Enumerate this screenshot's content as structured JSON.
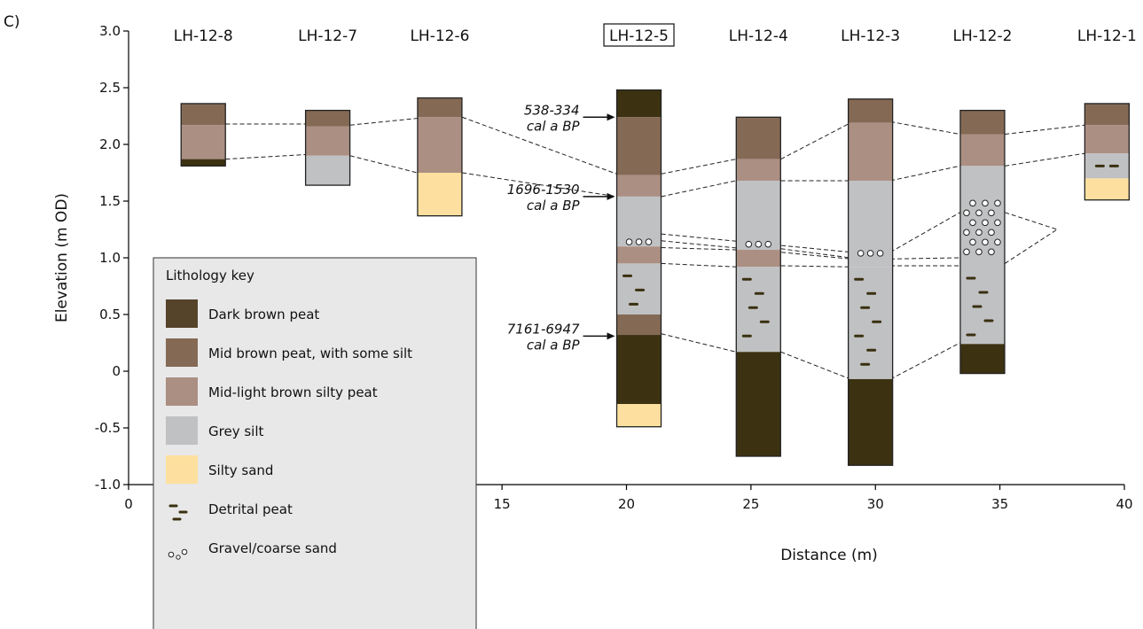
{
  "panel_label": "C)",
  "chart_data": {
    "type": "diagram",
    "xlabel": "Distance (m)",
    "ylabel": "Elevation (m OD)",
    "xlim": [
      0,
      40
    ],
    "ylim": [
      -1.0,
      3.0
    ],
    "x_ticks": [
      0,
      5,
      10,
      15,
      20,
      25,
      30,
      35,
      40
    ],
    "y_ticks": [
      -1.0,
      -0.5,
      0,
      0.5,
      1.0,
      1.5,
      2.0,
      2.5,
      3.0
    ],
    "y_tick_labels": [
      "-1.0",
      "-0.5",
      "0",
      "0.5",
      "1.0",
      "1.5",
      "2.0",
      "2.5",
      "3.0"
    ],
    "cores": [
      {
        "name": "LH-12-8",
        "x": 3,
        "highlight": false,
        "layers": [
          {
            "type": "mid",
            "top": 2.36,
            "bottom": 2.17
          },
          {
            "type": "light",
            "top": 2.17,
            "bottom": 1.87
          },
          {
            "type": "dark",
            "top": 1.87,
            "bottom": 1.81
          }
        ]
      },
      {
        "name": "LH-12-7",
        "x": 8,
        "highlight": false,
        "layers": [
          {
            "type": "mid",
            "top": 2.3,
            "bottom": 2.16
          },
          {
            "type": "light",
            "top": 2.16,
            "bottom": 1.9
          },
          {
            "type": "grey",
            "top": 1.9,
            "bottom": 1.64
          }
        ]
      },
      {
        "name": "LH-12-6",
        "x": 12.5,
        "highlight": false,
        "layers": [
          {
            "type": "mid",
            "top": 2.41,
            "bottom": 2.24
          },
          {
            "type": "light",
            "top": 2.24,
            "bottom": 1.75
          },
          {
            "type": "sand",
            "top": 1.75,
            "bottom": 1.37
          }
        ]
      },
      {
        "name": "LH-12-5",
        "x": 20.5,
        "highlight": true,
        "layers": [
          {
            "type": "dark",
            "top": 2.48,
            "bottom": 2.24
          },
          {
            "type": "mid",
            "top": 2.24,
            "bottom": 1.73
          },
          {
            "type": "light",
            "top": 1.73,
            "bottom": 1.54
          },
          {
            "type": "grey",
            "top": 1.54,
            "bottom": 1.1
          },
          {
            "type": "light",
            "top": 1.1,
            "bottom": 0.95
          },
          {
            "type": "grey",
            "top": 0.95,
            "bottom": 0.5,
            "symbol": "detrital"
          },
          {
            "type": "mid",
            "top": 0.5,
            "bottom": 0.32
          },
          {
            "type": "dark",
            "top": 0.32,
            "bottom": -0.29
          },
          {
            "type": "sand",
            "top": -0.29,
            "bottom": -0.49
          }
        ],
        "gravel": [
          1.14
        ]
      },
      {
        "name": "LH-12-4",
        "x": 25.3,
        "highlight": false,
        "layers": [
          {
            "type": "mid",
            "top": 2.24,
            "bottom": 1.87
          },
          {
            "type": "light",
            "top": 1.87,
            "bottom": 1.68
          },
          {
            "type": "grey",
            "top": 1.68,
            "bottom": 1.07
          },
          {
            "type": "light",
            "top": 1.07,
            "bottom": 0.92
          },
          {
            "type": "grey",
            "top": 0.92,
            "bottom": 0.17,
            "symbol": "detrital"
          },
          {
            "type": "dark",
            "top": 0.17,
            "bottom": -0.75
          }
        ],
        "gravel": [
          1.12
        ]
      },
      {
        "name": "LH-12-3",
        "x": 29.8,
        "highlight": false,
        "layers": [
          {
            "type": "mid",
            "top": 2.4,
            "bottom": 2.19
          },
          {
            "type": "light",
            "top": 2.19,
            "bottom": 1.68
          },
          {
            "type": "grey",
            "top": 1.68,
            "bottom": 0.92
          },
          {
            "type": "grey",
            "top": 0.92,
            "bottom": -0.07,
            "symbol": "detrital"
          },
          {
            "type": "dark",
            "top": -0.07,
            "bottom": -0.83
          }
        ],
        "gravel": [
          1.04
        ]
      },
      {
        "name": "LH-12-2",
        "x": 34.3,
        "highlight": false,
        "layers": [
          {
            "type": "mid",
            "top": 2.3,
            "bottom": 2.09
          },
          {
            "type": "light",
            "top": 2.09,
            "bottom": 1.81
          },
          {
            "type": "grey",
            "top": 1.81,
            "bottom": 0.93,
            "symbol": "gravel"
          },
          {
            "type": "grey",
            "top": 0.93,
            "bottom": 0.24,
            "symbol": "detrital"
          },
          {
            "type": "dark",
            "top": 0.24,
            "bottom": -0.02
          }
        ]
      },
      {
        "name": "LH-12-1",
        "x": 39.3,
        "highlight": false,
        "layers": [
          {
            "type": "mid",
            "top": 2.36,
            "bottom": 2.17
          },
          {
            "type": "light",
            "top": 2.17,
            "bottom": 1.92
          },
          {
            "type": "grey",
            "top": 1.92,
            "bottom": 1.7,
            "symbol": "detrital"
          },
          {
            "type": "sand",
            "top": 1.7,
            "bottom": 1.51
          }
        ]
      }
    ],
    "correlation_lines": [
      [
        [
          3.9,
          2.18
        ],
        [
          7.1,
          2.18
        ]
      ],
      [
        [
          3.9,
          1.87
        ],
        [
          7.1,
          1.91
        ]
      ],
      [
        [
          8.9,
          2.17
        ],
        [
          11.6,
          2.23
        ]
      ],
      [
        [
          8.9,
          1.9
        ],
        [
          11.6,
          1.75
        ]
      ],
      [
        [
          13.4,
          2.24
        ],
        [
          19.6,
          1.74
        ]
      ],
      [
        [
          13.4,
          1.75
        ],
        [
          19.6,
          1.54
        ]
      ],
      [
        [
          21.4,
          1.74
        ],
        [
          24.4,
          1.87
        ]
      ],
      [
        [
          21.4,
          1.54
        ],
        [
          24.4,
          1.68
        ]
      ],
      [
        [
          21.4,
          1.21
        ],
        [
          29.0,
          1.05
        ]
      ],
      [
        [
          21.4,
          1.15
        ],
        [
          29.0,
          0.99
        ]
      ],
      [
        [
          21.4,
          1.09
        ],
        [
          24.4,
          1.07
        ]
      ],
      [
        [
          21.4,
          0.95
        ],
        [
          24.4,
          0.92
        ]
      ],
      [
        [
          21.4,
          0.33
        ],
        [
          24.4,
          0.17
        ]
      ],
      [
        [
          26.2,
          1.87
        ],
        [
          29.0,
          2.19
        ]
      ],
      [
        [
          26.2,
          1.68
        ],
        [
          29.0,
          1.68
        ]
      ],
      [
        [
          26.2,
          1.08
        ],
        [
          29.0,
          1.0
        ]
      ],
      [
        [
          26.2,
          0.93
        ],
        [
          29.0,
          0.92
        ]
      ],
      [
        [
          26.2,
          0.17
        ],
        [
          29.0,
          -0.07
        ]
      ],
      [
        [
          30.6,
          2.2
        ],
        [
          33.4,
          2.09
        ]
      ],
      [
        [
          30.6,
          1.68
        ],
        [
          33.4,
          1.81
        ]
      ],
      [
        [
          30.6,
          1.05
        ],
        [
          33.4,
          1.4
        ]
      ],
      [
        [
          30.6,
          0.99
        ],
        [
          33.4,
          1.0
        ]
      ],
      [
        [
          30.6,
          0.93
        ],
        [
          33.4,
          0.93
        ]
      ],
      [
        [
          30.6,
          -0.07
        ],
        [
          33.4,
          0.25
        ]
      ],
      [
        [
          35.2,
          2.09
        ],
        [
          38.4,
          2.17
        ]
      ],
      [
        [
          35.2,
          1.81
        ],
        [
          38.4,
          1.92
        ]
      ],
      [
        [
          35.2,
          1.4
        ],
        [
          37.3,
          1.25
        ]
      ],
      [
        [
          35.2,
          0.95
        ],
        [
          37.3,
          1.25
        ]
      ]
    ],
    "dates": [
      {
        "line1": "538-334",
        "line2": "cal a BP",
        "elevation": 2.24
      },
      {
        "line1": "1696-1530",
        "line2": "cal a BP",
        "elevation": 1.54
      },
      {
        "line1": "7161-6947",
        "line2": "cal a BP",
        "elevation": 0.31
      }
    ]
  },
  "legend": {
    "title": "Lithology key",
    "items": [
      {
        "key": "dark",
        "label": "Dark brown peat",
        "color": "#55432a"
      },
      {
        "key": "mid",
        "label": "Mid brown peat, with some silt",
        "color": "#846a55"
      },
      {
        "key": "light",
        "label": "Mid-light brown silty peat",
        "color": "#ab8f82"
      },
      {
        "key": "grey",
        "label": "Grey silt",
        "color": "#c0c1c3"
      },
      {
        "key": "sand",
        "label": "Silty sand",
        "color": "#fde09f"
      },
      {
        "key": "detrital",
        "label": "Detrital peat",
        "color": "#3a3010"
      },
      {
        "key": "gravel",
        "label": "Gravel/coarse sand",
        "color": "#ffffff"
      }
    ]
  },
  "colors": {
    "dark_core": "#3c3212",
    "legend_bg": "#e8e8e8"
  }
}
